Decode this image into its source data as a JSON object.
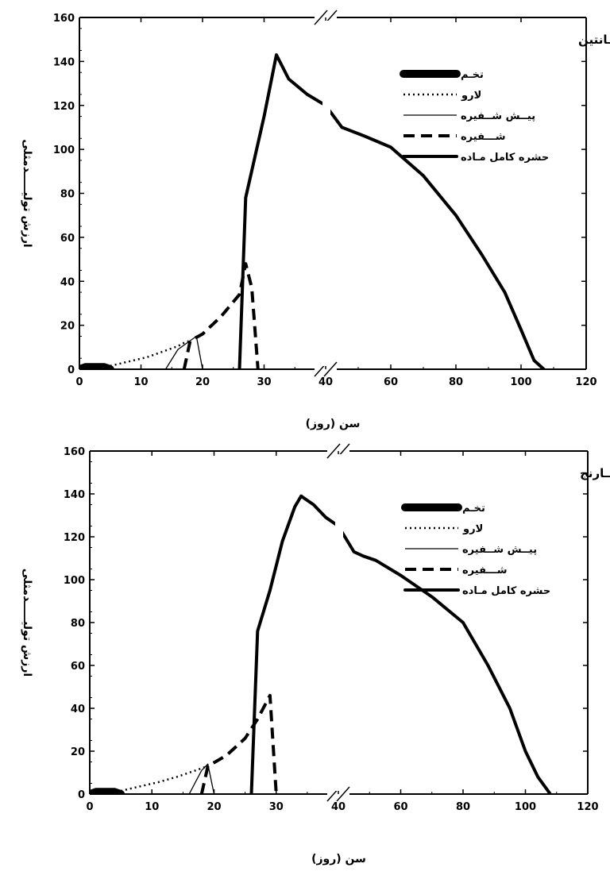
{
  "chart_data": [
    {
      "type": "line",
      "title": "نــــارنگی کلمــــانتین",
      "xlabel": "سن (روز)",
      "ylabel": "ارزش تولیـــــدمثلی",
      "ylim": [
        0,
        160
      ],
      "yticks": [
        "0",
        "20",
        "40",
        "60",
        "80",
        "100",
        "120",
        "140",
        "160"
      ],
      "x_axis": {
        "note": "broken axis: linear 0-40 on left segment, 40-120 on right segment",
        "left_ticks": [
          "0",
          "10",
          "20",
          "30",
          "40"
        ],
        "right_ticks": [
          "60",
          "80",
          "100",
          "120"
        ]
      },
      "legend_placement": "top-right",
      "series": [
        {
          "name": "تخـم",
          "style": "thick",
          "x": [
            0,
            1,
            2,
            3,
            4,
            5
          ],
          "y": [
            0,
            1,
            1,
            1,
            1,
            0
          ]
        },
        {
          "name": "لارو",
          "style": "dotted",
          "x": [
            5,
            8,
            11,
            14,
            16,
            17,
            18
          ],
          "y": [
            1.5,
            3.5,
            5.5,
            8.5,
            10.5,
            12,
            13
          ]
        },
        {
          "name": "پیــش شــفیره",
          "style": "thin",
          "x": [
            14,
            16,
            18,
            19,
            20
          ],
          "y": [
            0,
            9,
            13,
            15,
            0
          ]
        },
        {
          "name": "شـــفیره",
          "style": "dashed",
          "x": [
            17,
            18,
            20,
            23,
            26,
            27,
            28,
            29
          ],
          "y": [
            0,
            13,
            16,
            24,
            34,
            48,
            37,
            0
          ]
        },
        {
          "name": "حشره کامل مـاده",
          "style": "solid",
          "x": [
            26,
            27,
            30,
            32,
            34,
            37,
            40,
            45,
            52,
            60,
            70,
            80,
            88,
            95,
            100,
            104,
            107
          ],
          "y": [
            0,
            78,
            115,
            143,
            132,
            125,
            120,
            110,
            106,
            101,
            88,
            70,
            52,
            35,
            18,
            4,
            0
          ]
        }
      ]
    },
    {
      "type": "line",
      "title": "نـــارنج",
      "xlabel": "سن (روز)",
      "ylabel": "ارزش تولیـــــدمثلی",
      "ylim": [
        0,
        160
      ],
      "yticks": [
        "0",
        "20",
        "40",
        "60",
        "80",
        "100",
        "120",
        "140",
        "160"
      ],
      "x_axis": {
        "note": "broken axis: linear 0-40 on left segment, 40-120 on right segment",
        "left_ticks": [
          "0",
          "10",
          "20",
          "30",
          "40"
        ],
        "right_ticks": [
          "60",
          "80",
          "100",
          "120"
        ]
      },
      "legend_placement": "top-right",
      "series": [
        {
          "name": "تخـم",
          "style": "thick",
          "x": [
            0,
            1,
            2,
            3,
            4,
            5
          ],
          "y": [
            0,
            1,
            1,
            1,
            1,
            0
          ]
        },
        {
          "name": "لارو",
          "style": "dotted",
          "x": [
            5,
            8,
            11,
            14,
            16,
            18,
            19
          ],
          "y": [
            1.5,
            3.5,
            5.5,
            8,
            10,
            12,
            13
          ]
        },
        {
          "name": "پیــش شــفیره",
          "style": "thin",
          "x": [
            16,
            18,
            19,
            20
          ],
          "y": [
            0,
            11,
            14,
            0
          ]
        },
        {
          "name": "شـــفیره",
          "style": "dashed",
          "x": [
            18,
            19,
            22,
            25,
            27,
            29,
            30
          ],
          "y": [
            0,
            13,
            18,
            26,
            35,
            46,
            0
          ]
        },
        {
          "name": "حشره کامل مـاده",
          "style": "solid",
          "x": [
            26,
            27,
            29,
            31,
            33,
            34,
            36,
            38,
            40,
            45,
            48,
            52,
            60,
            70,
            80,
            88,
            95,
            100,
            104,
            108
          ],
          "y": [
            0,
            76,
            95,
            118,
            134,
            139,
            135,
            129,
            125,
            113,
            111,
            109,
            102,
            92,
            80,
            60,
            40,
            20,
            8,
            0
          ]
        }
      ]
    }
  ]
}
